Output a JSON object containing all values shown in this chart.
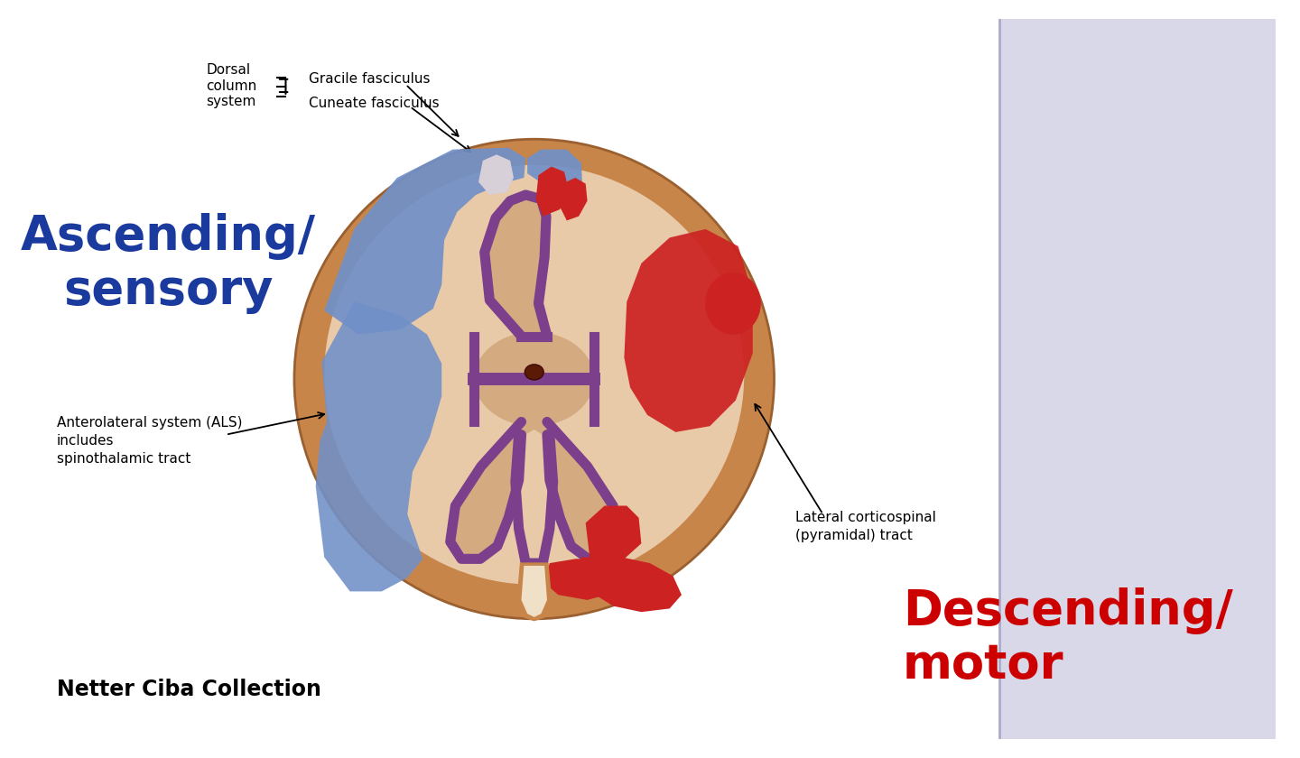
{
  "background_color": "#ffffff",
  "outer_cord_color": "#c8854a",
  "white_matter_color": "#e8c9a8",
  "gray_matter_color": "#d4aa80",
  "purple_outline_color": "#7B3F8C",
  "blue_ascending_color": "#7090C8",
  "red_descending_color": "#CC2222",
  "ascending_label": "Ascending/\nsensory",
  "ascending_color": "#1a3a9e",
  "descending_label": "Descending/\nmotor",
  "descending_color": "#cc0000",
  "label1": "Dorsal\ncolumn\nsystem",
  "label2": "Gracile fasciculus",
  "label3": "Cuneate fasciculus",
  "label4": "Anterolateral system (ALS)\nincludes\nspinothalamic tract",
  "label5": "Lateral corticospinal\n(pyramidal) tract",
  "footer": "Netter Ciba Collection",
  "canal_color": "#5A1A05",
  "right_panel_color": "#d8d8e8"
}
